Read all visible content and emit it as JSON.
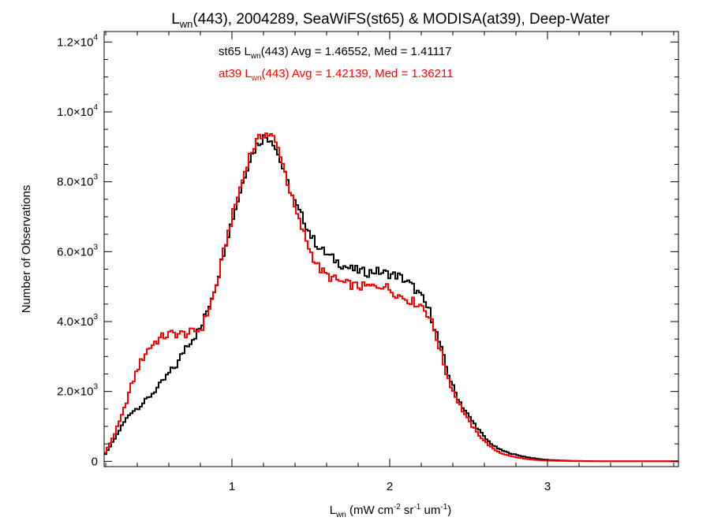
{
  "chart_data": {
    "type": "line",
    "title": {
      "main": "L",
      "sub": "wn",
      "rest": "(443), 2004289, SeaWiFS(st65) & MODISA(at39), Deep-Water"
    },
    "xlabel": {
      "main": "L",
      "sub": "wn",
      "p1": " (mW cm",
      "sup1": "-2",
      "p2": " sr",
      "sup2": "-1",
      "p3": " um",
      "sup3": "-1",
      "p4": ")"
    },
    "ylabel": "Number of Observations",
    "xlim": [
      0.19,
      3.83
    ],
    "ylim": [
      -150,
      12300
    ],
    "x_ticks": [
      {
        "value": 1,
        "label": "1"
      },
      {
        "value": 2,
        "label": "2"
      },
      {
        "value": 3,
        "label": "3"
      }
    ],
    "y_ticks": [
      {
        "value": 0,
        "mant": "0",
        "exp": ""
      },
      {
        "value": 2000,
        "mant": "2.0×10",
        "exp": "3"
      },
      {
        "value": 4000,
        "mant": "4.0×10",
        "exp": "3"
      },
      {
        "value": 6000,
        "mant": "6.0×10",
        "exp": "3"
      },
      {
        "value": 8000,
        "mant": "8.0×10",
        "exp": "3"
      },
      {
        "value": 10000,
        "mant": "1.0×10",
        "exp": "4"
      },
      {
        "value": 12000,
        "mant": "1.2×10",
        "exp": "4"
      }
    ],
    "annotations": [
      {
        "color": "#000000",
        "pre": "st65 L",
        "sub": "wn",
        "post": "(443) Avg = 1.46552, Med = 1.41117"
      },
      {
        "color": "#ff0000",
        "pre": "at39 L",
        "sub": "wn",
        "post": "(443) Avg = 1.42139, Med = 1.36211"
      }
    ],
    "series": [
      {
        "color": "#000000",
        "x": [
          0.19,
          0.25,
          0.3,
          0.35,
          0.4,
          0.45,
          0.5,
          0.55,
          0.6,
          0.65,
          0.7,
          0.75,
          0.8,
          0.85,
          0.9,
          0.95,
          1.0,
          1.05,
          1.1,
          1.15,
          1.2,
          1.25,
          1.3,
          1.35,
          1.4,
          1.45,
          1.5,
          1.55,
          1.6,
          1.65,
          1.7,
          1.75,
          1.8,
          1.85,
          1.9,
          1.95,
          2.0,
          2.05,
          2.1,
          2.15,
          2.2,
          2.25,
          2.3,
          2.35,
          2.4,
          2.45,
          2.5,
          2.55,
          2.6,
          2.65,
          2.7,
          2.75,
          2.8,
          2.85,
          2.9,
          2.95,
          3.0,
          3.1,
          3.2,
          3.3,
          3.4,
          3.5,
          3.6,
          3.7,
          3.83
        ],
        "y": [
          200,
          650,
          1050,
          1400,
          1550,
          1750,
          2000,
          2250,
          2550,
          2800,
          3300,
          3550,
          3850,
          4500,
          5200,
          6200,
          7000,
          7800,
          8600,
          9050,
          9300,
          9200,
          8600,
          7900,
          7300,
          6900,
          6400,
          6100,
          5900,
          5750,
          5600,
          5500,
          5450,
          5400,
          5450,
          5400,
          5350,
          5300,
          5150,
          4950,
          4650,
          4250,
          3500,
          2700,
          2050,
          1600,
          1250,
          950,
          650,
          450,
          320,
          240,
          180,
          130,
          90,
          60,
          40,
          20,
          10,
          5,
          3,
          2,
          1,
          0,
          0
        ]
      },
      {
        "color": "#ff0000",
        "x": [
          0.19,
          0.25,
          0.3,
          0.35,
          0.4,
          0.45,
          0.5,
          0.55,
          0.6,
          0.65,
          0.7,
          0.75,
          0.8,
          0.85,
          0.9,
          0.95,
          1.0,
          1.05,
          1.1,
          1.15,
          1.2,
          1.25,
          1.3,
          1.35,
          1.4,
          1.45,
          1.5,
          1.55,
          1.6,
          1.65,
          1.7,
          1.75,
          1.8,
          1.85,
          1.9,
          1.95,
          2.0,
          2.05,
          2.1,
          2.15,
          2.2,
          2.25,
          2.3,
          2.35,
          2.4,
          2.45,
          2.5,
          2.55,
          2.6,
          2.65,
          2.7,
          2.75,
          2.8,
          2.85,
          2.9,
          2.95,
          3.0,
          3.1,
          3.2,
          3.3,
          3.4,
          3.5,
          3.6,
          3.7,
          3.83
        ],
        "y": [
          250,
          800,
          1350,
          2100,
          2700,
          3150,
          3400,
          3550,
          3650,
          3650,
          3650,
          3700,
          3800,
          4400,
          5100,
          6200,
          7100,
          7900,
          8700,
          9150,
          9400,
          9300,
          8800,
          7900,
          7100,
          6500,
          5900,
          5500,
          5300,
          5200,
          5100,
          5050,
          5000,
          5000,
          5000,
          5050,
          4900,
          4750,
          4650,
          4550,
          4450,
          4100,
          3400,
          2550,
          1950,
          1500,
          1100,
          800,
          550,
          350,
          230,
          160,
          110,
          75,
          45,
          30,
          20,
          10,
          5,
          3,
          2,
          1,
          0,
          0,
          0
        ]
      }
    ]
  }
}
